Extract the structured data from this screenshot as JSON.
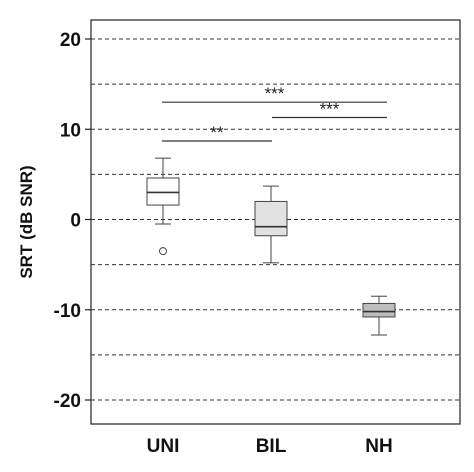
{
  "chart_data": {
    "type": "box",
    "ylabel": "SRT (dB SNR)",
    "ylim": [
      -22,
      23
    ],
    "yticks": [
      20,
      10,
      0,
      -10,
      -20
    ],
    "grid_lines": [
      20,
      15,
      10,
      5,
      0,
      -5,
      -10,
      -15,
      -20
    ],
    "grid": "dashed horizontal",
    "categories": [
      "UNI",
      "BIL",
      "NH"
    ],
    "boxes": [
      {
        "category": "UNI",
        "min": -0.5,
        "q1": 1.6,
        "median": 3.0,
        "q3": 4.6,
        "max": 6.8,
        "outliers": [
          -3.5
        ],
        "fill": "#ffffff"
      },
      {
        "category": "BIL",
        "min": -4.8,
        "q1": -1.8,
        "median": -0.8,
        "q3": 2.0,
        "max": 3.7,
        "outliers": [],
        "fill": "#e2e2e2"
      },
      {
        "category": "NH",
        "min": -12.8,
        "q1": -10.8,
        "median": -10.2,
        "q3": -9.3,
        "max": -8.5,
        "outliers": [],
        "fill": "#bdbdbd"
      }
    ],
    "significance": [
      {
        "from": "UNI",
        "to": "NH",
        "y": 13.0,
        "label": "***"
      },
      {
        "from": "BIL",
        "to": "NH",
        "y": 11.3,
        "label": "***"
      },
      {
        "from": "UNI",
        "to": "BIL",
        "y": 8.7,
        "label": "**"
      }
    ]
  }
}
